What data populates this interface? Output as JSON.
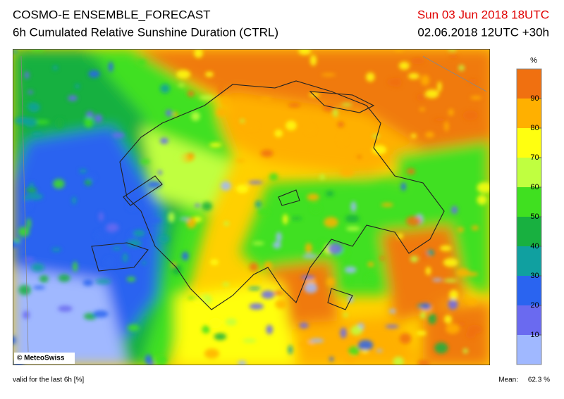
{
  "header": {
    "title": "COSMO-E ENSEMBLE_FORECAST",
    "subtitle": "6h Cumulated Relative Sunshine Duration (CTRL)",
    "valid_time": "Sun 03 Jun 2018 18UTC",
    "run_time": "02.06.2018 12UTC +30h"
  },
  "colorbar": {
    "unit": "%",
    "ticks": [
      10,
      20,
      30,
      40,
      50,
      60,
      70,
      80,
      90
    ],
    "colors": [
      "#a0b8ff",
      "#6a6af0",
      "#2a64f0",
      "#10a0a0",
      "#18b040",
      "#40e020",
      "#c0ff40",
      "#ffff10",
      "#ffb000",
      "#f07010"
    ]
  },
  "map": {
    "copyright": "© MeteoSwiss"
  },
  "footer": {
    "note": "valid for the last 6h [%]",
    "mean_label": "Mean:",
    "mean_value": "62.3 %"
  }
}
